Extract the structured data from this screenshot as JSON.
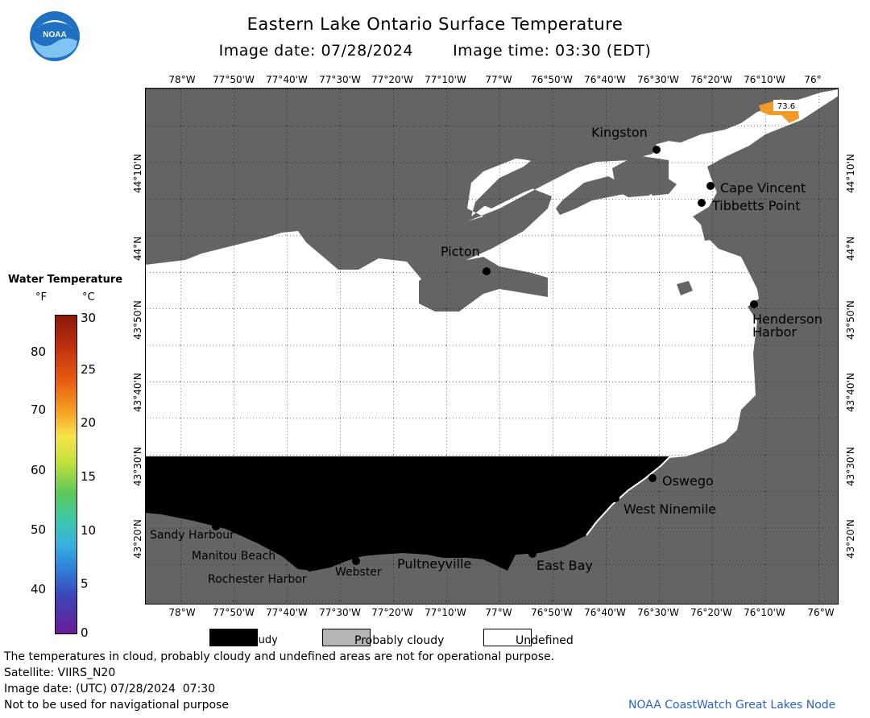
{
  "header": {
    "title": "Eastern Lake Ontario Surface Temperature",
    "image_date": "Image date: 07/28/2024",
    "image_time": "Image time: 03:30 (EDT)"
  },
  "logo": {
    "text": "NOAA"
  },
  "map": {
    "lon_labels": [
      "78°W",
      "77°50'W",
      "77°40'W",
      "77°30'W",
      "77°20'W",
      "77°10'W",
      "77°W",
      "76°50'W",
      "76°40'W",
      "76°30'W",
      "76°20'W",
      "76°10'W",
      "76°"
    ],
    "lon_labels_bottom": [
      "78°W",
      "77°50'W",
      "77°40'W",
      "77°30'W",
      "77°20'W",
      "77°10'W",
      "77°W",
      "76°50'W",
      "76°40'W",
      "76°30'W",
      "76°20'W",
      "76°10'W",
      "76°W"
    ],
    "lat_labels": [
      "44°10'N",
      "44°N",
      "43°50'N",
      "43°40'N",
      "43°30'N",
      "43°20'N"
    ],
    "places": {
      "kingston": "Kingston",
      "cape_vincent": "Cape Vincent",
      "tibbetts": "Tibbetts Point",
      "picton": "Picton",
      "henderson": "Henderson",
      "henderson2": "Harbor",
      "oswego": "Oswego",
      "west_ninemile": "West Ninemile",
      "sandy": "Sandy Harbour",
      "manitou": "Manitou Beach",
      "rochester": "Rochester Harbor",
      "webster": "Webster",
      "pultneyville": "Pultneyville",
      "east_bay": "East Bay"
    },
    "temp_label": "73.6",
    "colors": {
      "land": "#646464",
      "undefined": "#ffffff",
      "cloudy": "#000000",
      "temp": "#f39a2a"
    }
  },
  "legend": {
    "title": "Water Temperature",
    "unit_f": "°F",
    "unit_c": "°C",
    "f_ticks": [
      "80",
      "70",
      "60",
      "50",
      "40"
    ],
    "c_ticks": [
      "30",
      "25",
      "20",
      "15",
      "10",
      "5",
      "0"
    ]
  },
  "key": {
    "cloudy": "Cloudy",
    "probably_cloudy": "Probably cloudy",
    "undefined": "Undefined"
  },
  "footer": {
    "disclaimer": "The temperatures in cloud, probably cloudy and undefined areas are not for operational purpose.",
    "satellite": "Satellite: VIIRS_N20",
    "utc_date": "Image date: (UTC) 07/28/2024  07:30",
    "nav": "Not to be used for navigational purpose",
    "node": "NOAA CoastWatch Great Lakes Node"
  }
}
